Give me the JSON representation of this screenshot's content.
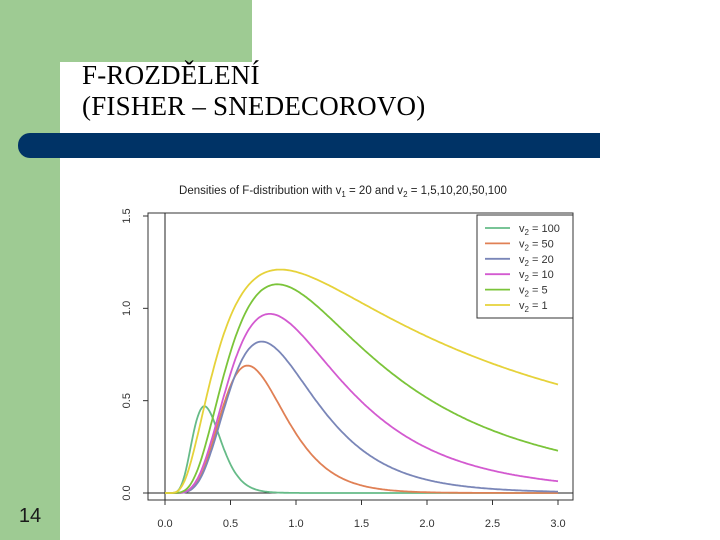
{
  "slide": {
    "title_line1": "F-ROZDĚLENÍ",
    "title_line2": "(FISHER – SNEDECOROVO)",
    "number": "14",
    "colors": {
      "sidebar": "#9ecb93",
      "title_bar": "#003366",
      "background": "#ffffff"
    }
  },
  "chart_data": {
    "type": "line",
    "title": "Densities of F-distribution with v1 = 20 and v2 = 1,5,10,20,50,100",
    "title_parts": [
      "Densities of F-distribution with v",
      "1",
      " = 20 and v",
      "2",
      " = 1,5,10,20,50,100"
    ],
    "xlabel": "",
    "ylabel": "",
    "xlim": [
      0,
      3.0
    ],
    "ylim": [
      0,
      1.5
    ],
    "x_ticks": [
      "0.0",
      "0.5",
      "1.0",
      "1.5",
      "2.0",
      "2.5",
      "3.0"
    ],
    "y_ticks": [
      "0.0",
      "0.5",
      "1.0",
      "1.5"
    ],
    "grid": false,
    "legend_position": "top-right",
    "v1": 20,
    "series": [
      {
        "name": "v2 = 100",
        "sub": "2",
        "value_label": " = 100",
        "v2": 100,
        "color": "#66bb88"
      },
      {
        "name": "v2 = 50",
        "sub": "2",
        "value_label": " = 50",
        "v2": 50,
        "color": "#e08055"
      },
      {
        "name": "v2 = 20",
        "sub": "2",
        "value_label": " = 20",
        "v2": 20,
        "color": "#7a86b8"
      },
      {
        "name": "v2 = 10",
        "sub": "2",
        "value_label": " = 10",
        "v2": 10,
        "color": "#d35ad0"
      },
      {
        "name": "v2 = 5",
        "sub": "2",
        "value_label": " = 5",
        "v2": 5,
        "color": "#7bc43a"
      },
      {
        "name": "v2 = 1",
        "sub": "2",
        "value_label": " = 1",
        "v2": 1,
        "color": "#e6d23a"
      }
    ],
    "peaks": [
      {
        "series": "v2 = 100",
        "x": 0.3,
        "y": 0.47
      },
      {
        "series": "v2 = 50",
        "x": 0.63,
        "y": 0.69
      },
      {
        "series": "v2 = 20",
        "x": 0.74,
        "y": 0.82
      },
      {
        "series": "v2 = 10",
        "x": 0.8,
        "y": 0.97
      },
      {
        "series": "v2 = 5",
        "x": 0.86,
        "y": 1.13
      },
      {
        "series": "v2 = 1",
        "x": 0.88,
        "y": 1.21
      }
    ]
  }
}
